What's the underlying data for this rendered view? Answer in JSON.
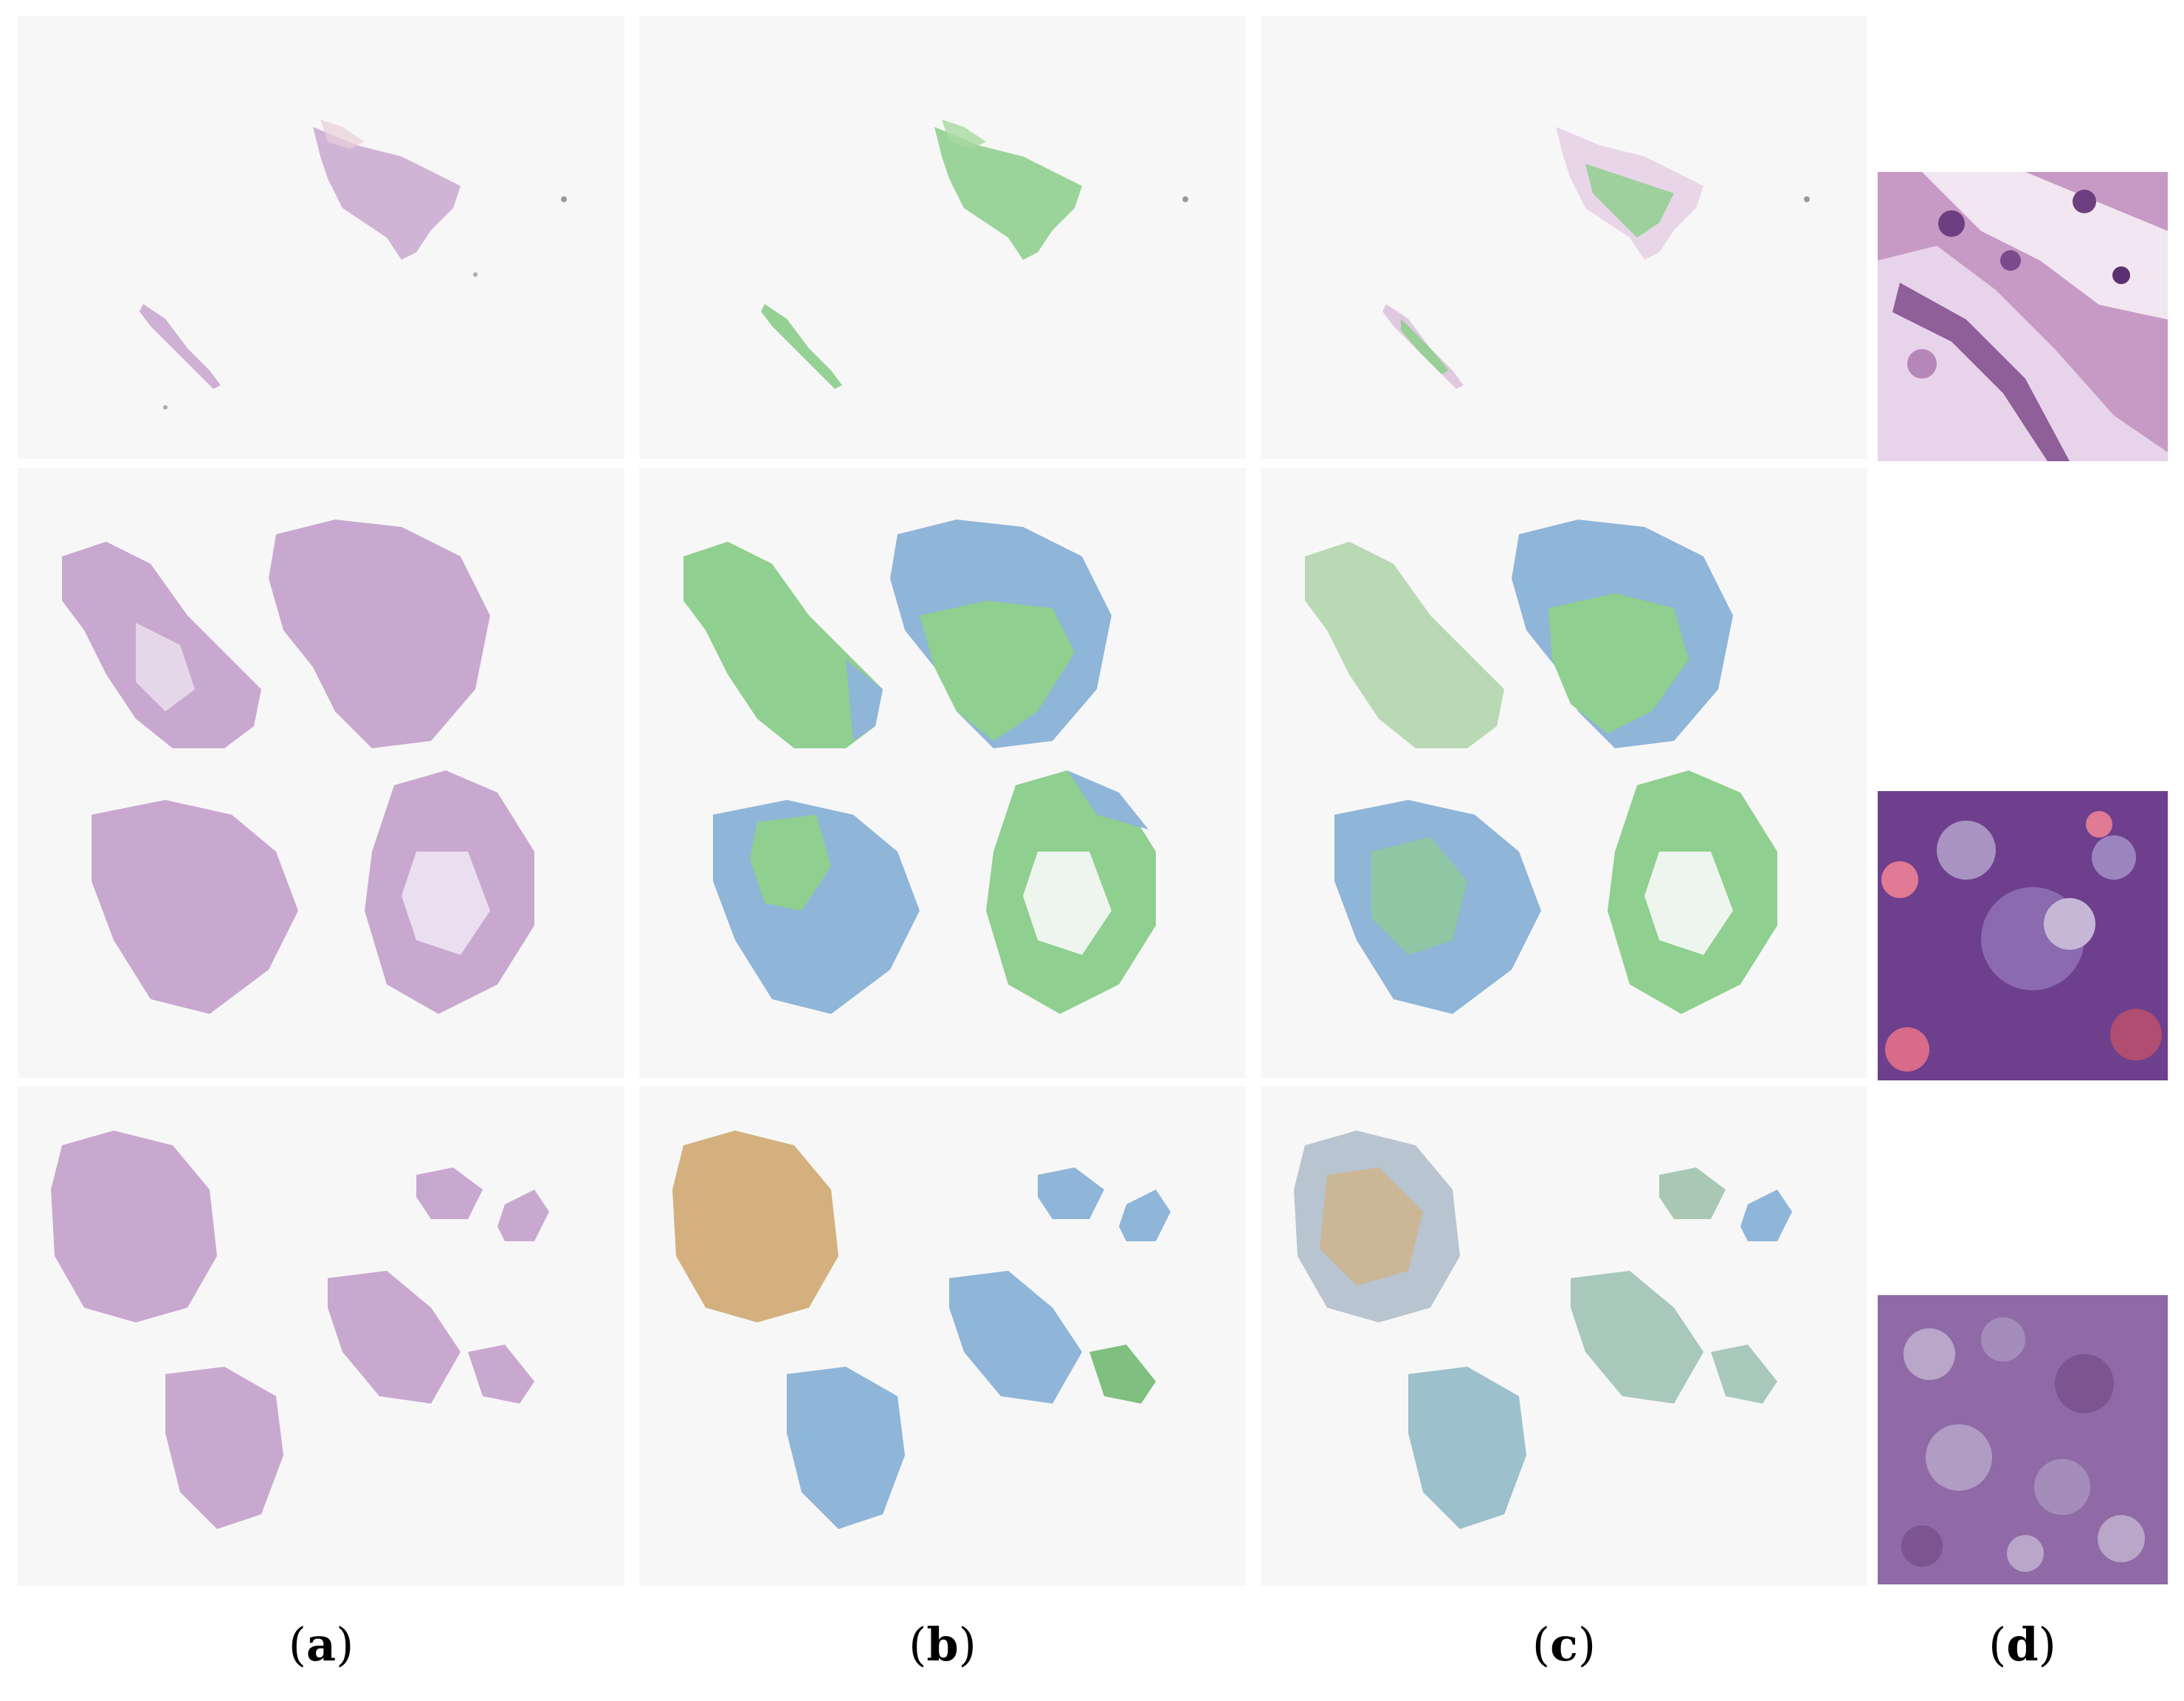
{
  "labels": {
    "a": "a",
    "b": "b",
    "c": "c",
    "d": "d"
  },
  "colors": {
    "tissue_he": "#c9a8d0",
    "tissue_he_dark": "#b18fbd",
    "overlay_green": "#8fcf8f",
    "overlay_blue": "#8fb5d8",
    "overlay_orange": "#d3b07e",
    "background": "#f7f7f7"
  }
}
